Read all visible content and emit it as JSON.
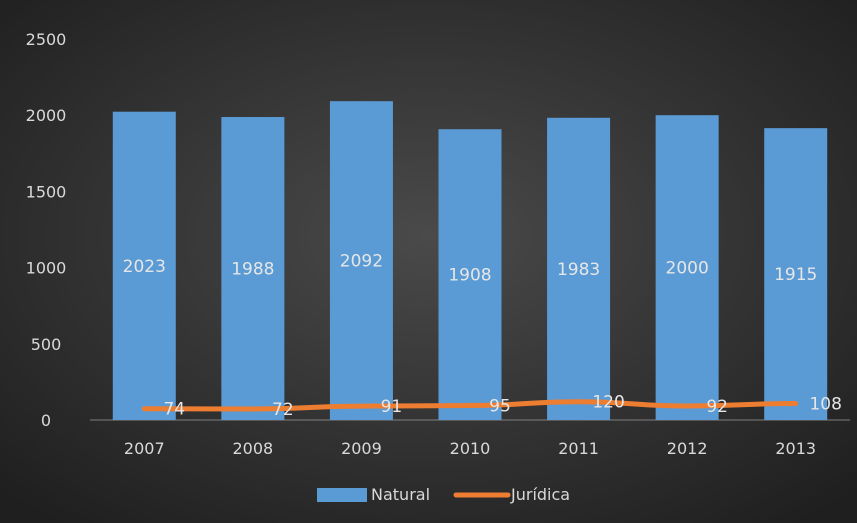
{
  "chart_data": {
    "type": "bar",
    "categories": [
      "2007",
      "2008",
      "2009",
      "2010",
      "2011",
      "2012",
      "2013"
    ],
    "series": [
      {
        "name": "Natural",
        "type": "bar",
        "color": "#5b9bd5",
        "values": [
          2023,
          1988,
          2092,
          1908,
          1983,
          2000,
          1915
        ]
      },
      {
        "name": "Jurídica",
        "type": "line",
        "color": "#ed7d31",
        "values": [
          74,
          72,
          91,
          95,
          120,
          92,
          108
        ]
      }
    ],
    "yticks": [
      "0",
      "500",
      "1000",
      "1500",
      "2000",
      "2500"
    ],
    "ylim": [
      0,
      2500
    ],
    "grid": false,
    "legend_position": "bottom",
    "title": "",
    "xlabel": "",
    "ylabel": ""
  },
  "colors": {
    "background_center": "#4a4a4a",
    "background_edge": "#1f1f1f",
    "text": "#d9d9d9",
    "axis_line": "#7f7f7f"
  }
}
